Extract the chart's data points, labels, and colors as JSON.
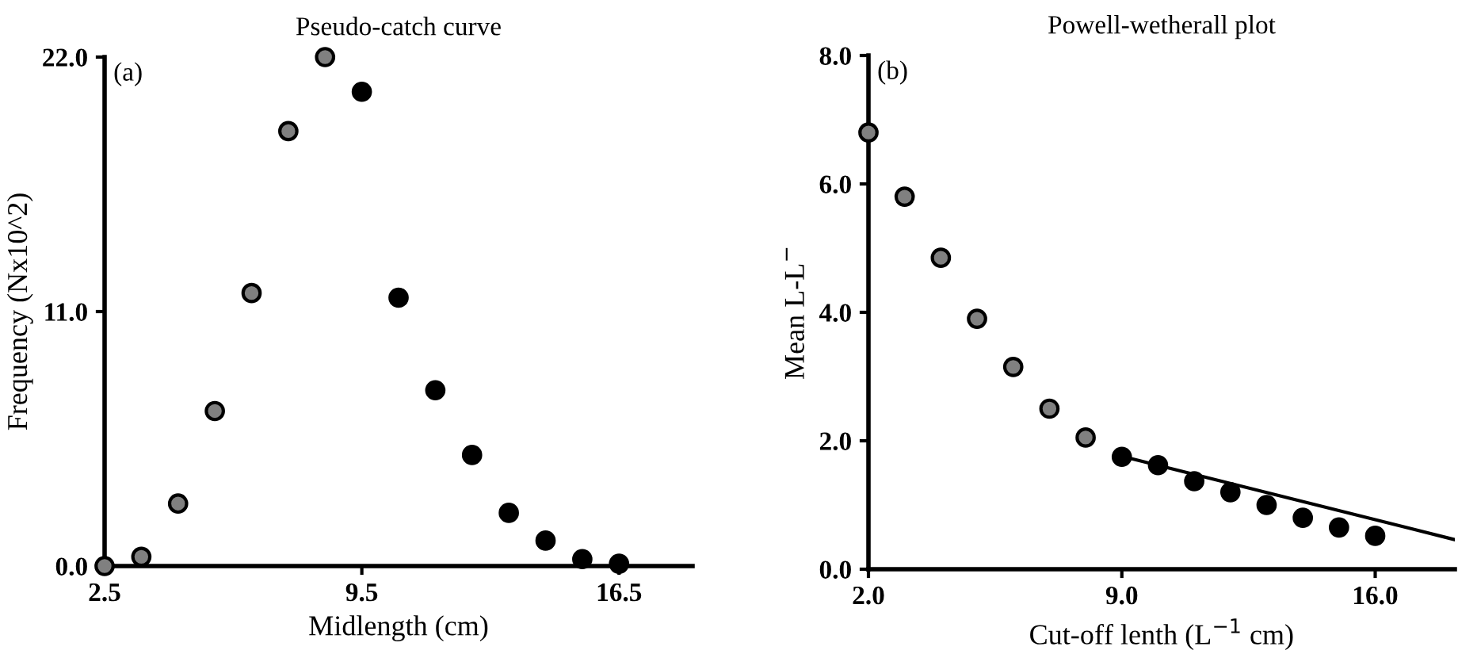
{
  "chart_data": [
    {
      "type": "scatter",
      "title": "Pseudo-catch curve",
      "xlabel": "Midlength (cm)",
      "ylabel": "Frequency (Nx10^2)",
      "annotations": [
        "(a)"
      ],
      "marker": "circle",
      "grid": false,
      "legend": false,
      "xlim": [
        2.5,
        18.5
      ],
      "xticks": [
        {
          "value": 2.5,
          "label": "2.5"
        },
        {
          "value": 9.5,
          "label": "9.5"
        },
        {
          "value": 16.5,
          "label": "16.5"
        }
      ],
      "ylim": [
        0,
        22
      ],
      "yticks": [
        {
          "value": 0,
          "label": "0.0"
        },
        {
          "value": 11,
          "label": "11.0"
        },
        {
          "value": 22,
          "label": "22.0"
        }
      ],
      "series": [
        {
          "color": "#808080",
          "x": [
            2.5,
            3.5,
            4.5,
            5.5,
            6.5,
            7.5,
            8.5
          ],
          "values": [
            0.0,
            0.4,
            2.7,
            6.7,
            11.8,
            18.8,
            22.0
          ]
        },
        {
          "color": "#000000",
          "x": [
            9.5,
            10.5,
            11.5,
            12.5,
            13.5,
            14.5,
            15.5,
            16.5
          ],
          "values": [
            20.5,
            11.6,
            7.6,
            4.8,
            2.3,
            1.1,
            0.3,
            0.1
          ]
        }
      ]
    },
    {
      "type": "scatter",
      "title": "Powell-wetherall plot",
      "xlabel": "Cut-off lenth (L$^{−1}$ cm)",
      "ylabel": "Mean L-L$^{−}$",
      "annotations": [
        "(b)"
      ],
      "marker": "circle",
      "grid": false,
      "legend": false,
      "xlim": [
        2.0,
        18.2
      ],
      "xticks": [
        {
          "value": 2,
          "label": "2.0"
        },
        {
          "value": 9,
          "label": "9.0"
        },
        {
          "value": 16,
          "label": "16.0"
        }
      ],
      "ylim": [
        0,
        8
      ],
      "yticks": [
        {
          "value": 0,
          "label": "0.0"
        },
        {
          "value": 2,
          "label": "2.0"
        },
        {
          "value": 4,
          "label": "4.0"
        },
        {
          "value": 6,
          "label": "6.0"
        },
        {
          "value": 8,
          "label": "8.0"
        }
      ],
      "series": [
        {
          "color": "#808080",
          "x": [
            2,
            3,
            4,
            5,
            6,
            7,
            8
          ],
          "values": [
            6.8,
            5.8,
            4.85,
            3.9,
            3.15,
            2.5,
            2.05
          ]
        },
        {
          "color": "#000000",
          "x": [
            9,
            10,
            11,
            12,
            13,
            14,
            15,
            16
          ],
          "values": [
            1.75,
            1.62,
            1.37,
            1.2,
            1.0,
            0.8,
            0.65,
            0.52
          ]
        },
        {
          "type": "line",
          "marker": "none",
          "color": "#000000",
          "x": [
            9.0,
            18.2
          ],
          "values": [
            1.76,
            0.46
          ]
        }
      ]
    }
  ]
}
